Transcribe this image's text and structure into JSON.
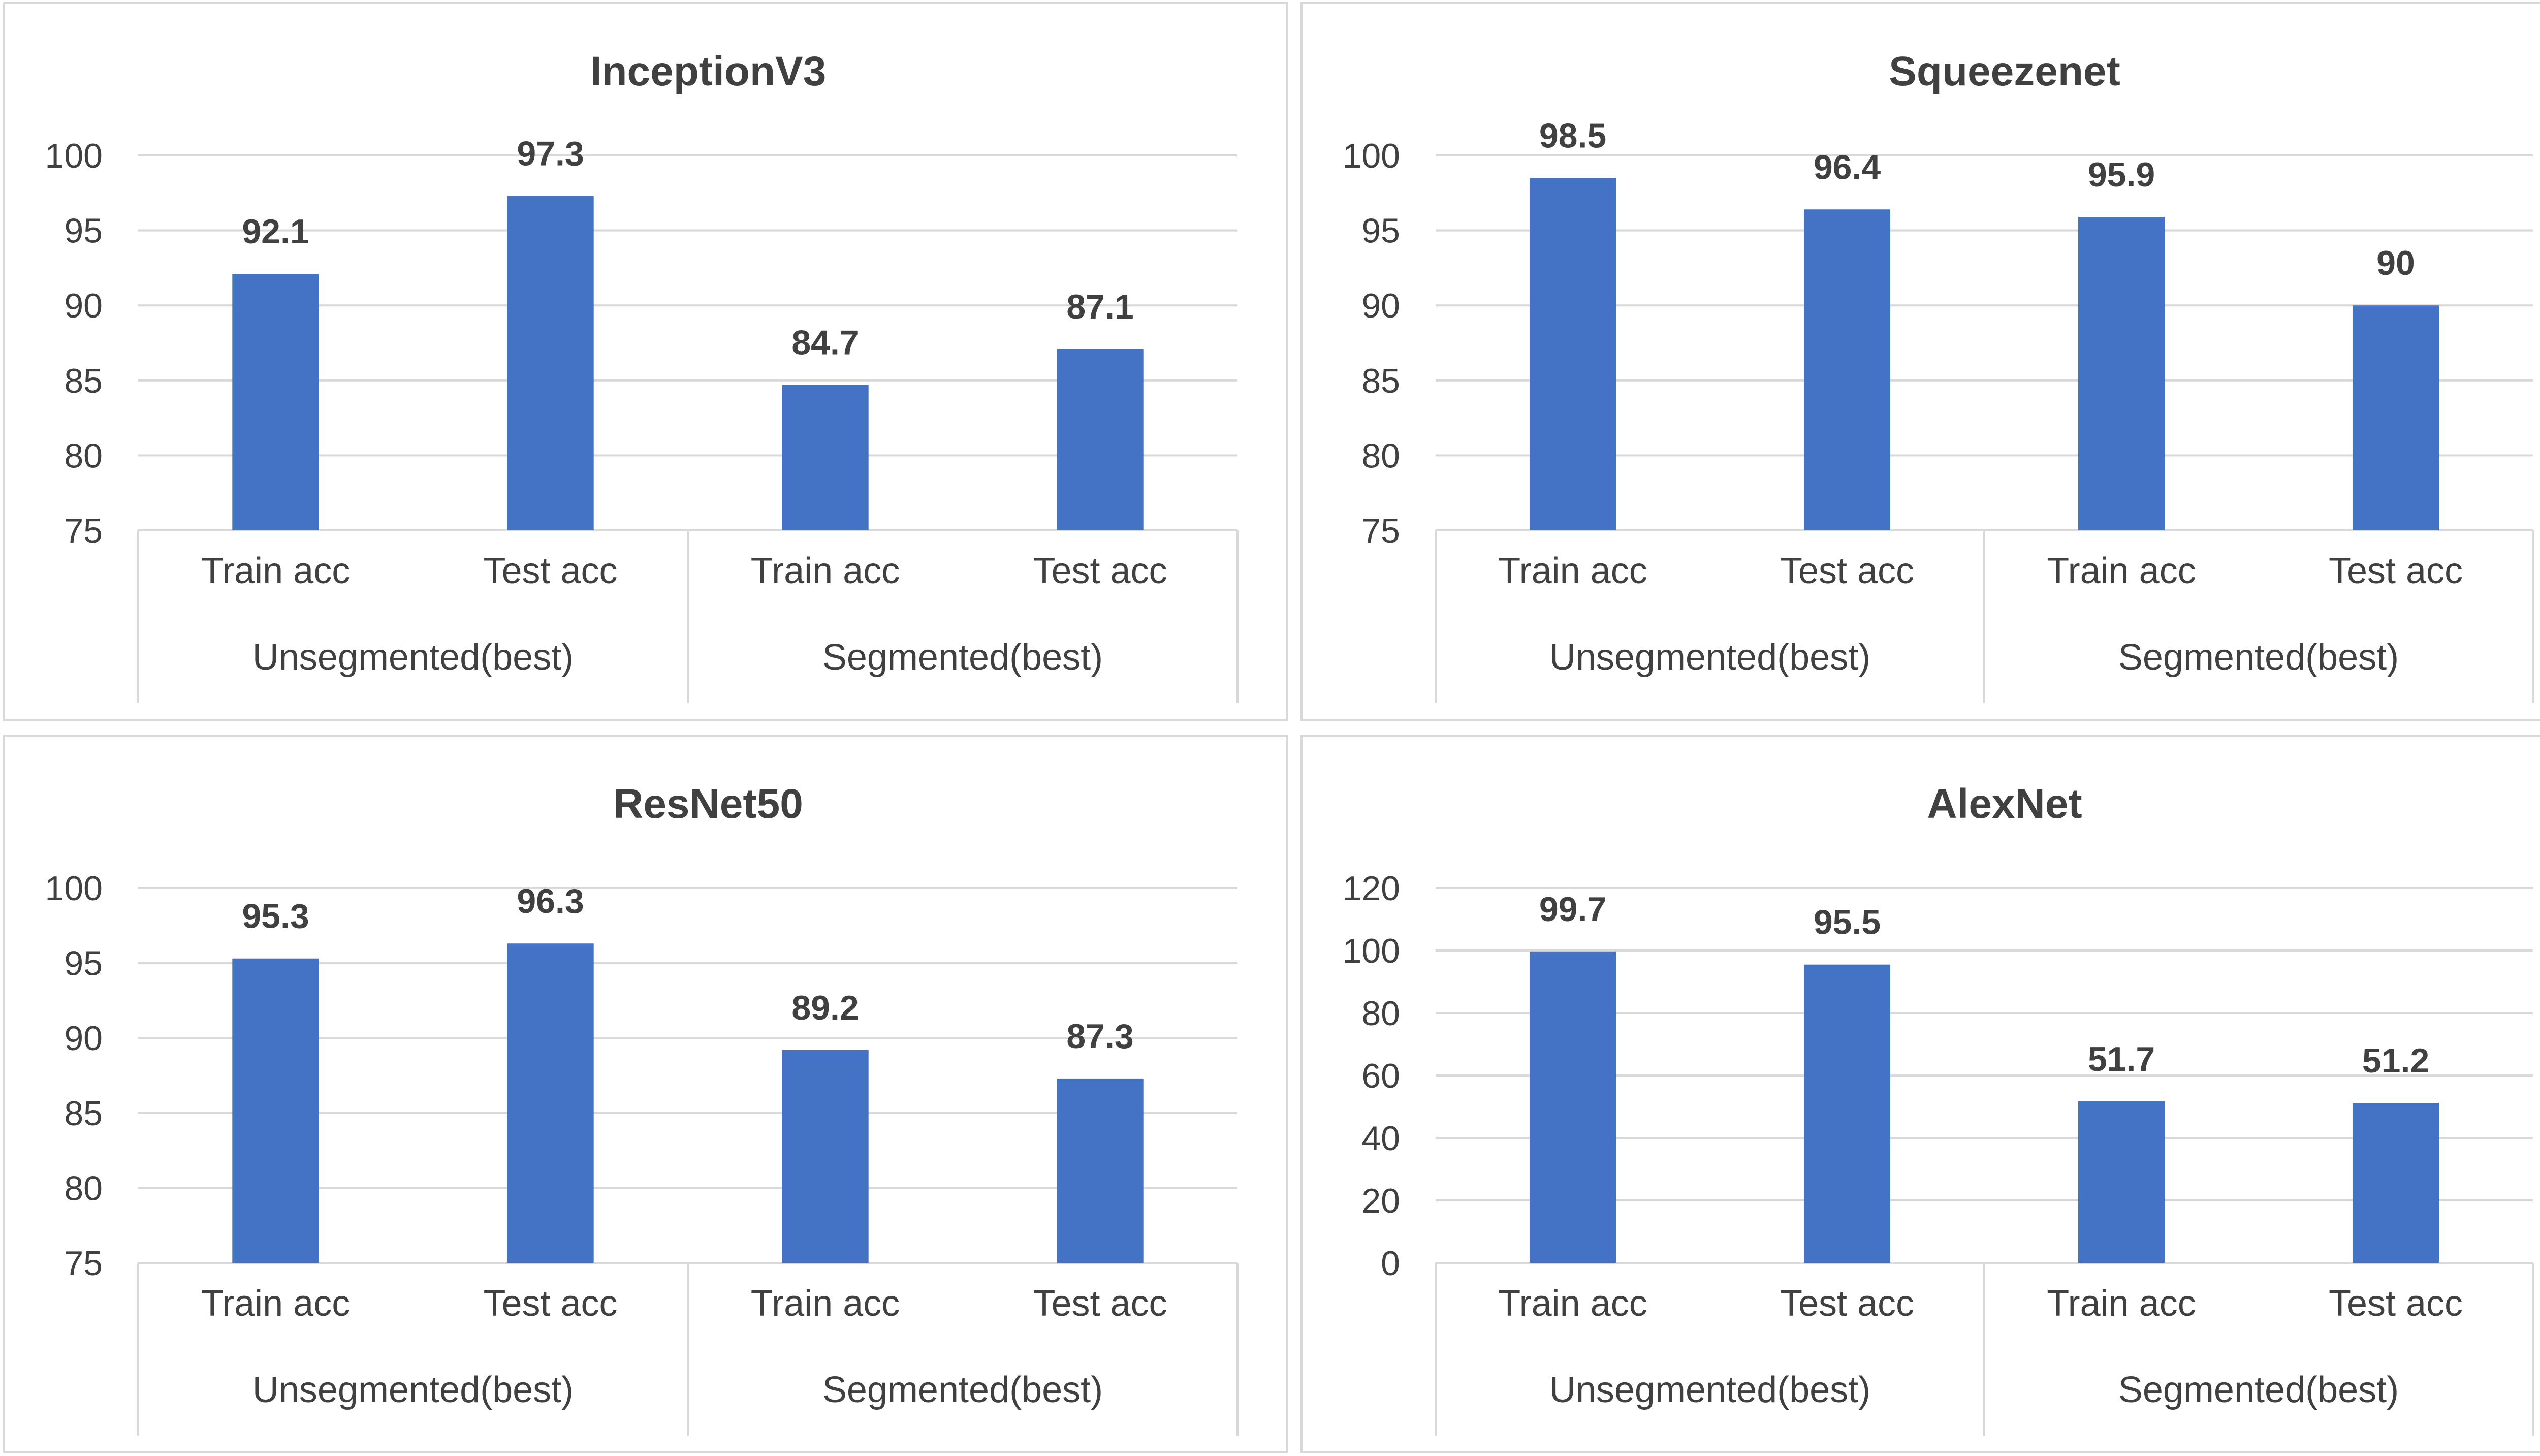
{
  "chart_data": [
    {
      "type": "bar",
      "title": "InceptionV3",
      "categories": [
        "Train acc",
        "Test acc",
        "Train acc",
        "Test acc"
      ],
      "groups": [
        {
          "label": "Unsegmented(best)",
          "span": 2
        },
        {
          "label": "Segmented(best)",
          "span": 2
        }
      ],
      "values": [
        92.1,
        97.3,
        84.7,
        87.1
      ],
      "data_labels": [
        "92.1",
        "97.3",
        "84.7",
        "87.1"
      ],
      "ylim": [
        75,
        100
      ],
      "yticks": [
        75,
        80,
        85,
        90,
        95,
        100
      ],
      "grid": true,
      "color": "#4472c4"
    },
    {
      "type": "bar",
      "title": "Squeezenet",
      "categories": [
        "Train acc",
        "Test acc",
        "Train acc",
        "Test acc"
      ],
      "groups": [
        {
          "label": "Unsegmented(best)",
          "span": 2
        },
        {
          "label": "Segmented(best)",
          "span": 2
        }
      ],
      "values": [
        98.5,
        96.4,
        95.9,
        90
      ],
      "data_labels": [
        "98.5",
        "96.4",
        "95.9",
        "90"
      ],
      "ylim": [
        75,
        100
      ],
      "yticks": [
        75,
        80,
        85,
        90,
        95,
        100
      ],
      "grid": true,
      "color": "#4472c4"
    },
    {
      "type": "bar",
      "title": "ResNet50",
      "categories": [
        "Train acc",
        "Test acc",
        "Train acc",
        "Test acc"
      ],
      "groups": [
        {
          "label": "Unsegmented(best)",
          "span": 2
        },
        {
          "label": "Segmented(best)",
          "span": 2
        }
      ],
      "values": [
        95.3,
        96.3,
        89.2,
        87.3
      ],
      "data_labels": [
        "95.3",
        "96.3",
        "89.2",
        "87.3"
      ],
      "ylim": [
        75,
        100
      ],
      "yticks": [
        75,
        80,
        85,
        90,
        95,
        100
      ],
      "grid": true,
      "color": "#4472c4"
    },
    {
      "type": "bar",
      "title": "AlexNet",
      "categories": [
        "Train acc",
        "Test acc",
        "Train acc",
        "Test acc"
      ],
      "groups": [
        {
          "label": "Unsegmented(best)",
          "span": 2
        },
        {
          "label": "Segmented(best)",
          "span": 2
        }
      ],
      "values": [
        99.7,
        95.5,
        51.7,
        51.2
      ],
      "data_labels": [
        "99.7",
        "95.5",
        "51.7",
        "51.2"
      ],
      "ylim": [
        0,
        120
      ],
      "yticks": [
        0,
        20,
        40,
        60,
        80,
        100,
        120
      ],
      "grid": true,
      "color": "#4472c4"
    }
  ]
}
